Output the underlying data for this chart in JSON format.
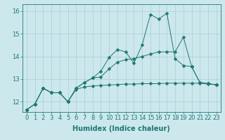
{
  "xlabel": "Humidex (Indice chaleur)",
  "bg_color": "#cce8ed",
  "grid_color": "#aacdd4",
  "line_color": "#1e7872",
  "x": [
    0,
    1,
    2,
    3,
    4,
    5,
    6,
    7,
    8,
    9,
    10,
    11,
    12,
    13,
    14,
    15,
    16,
    17,
    18,
    19,
    20,
    21,
    22,
    23
  ],
  "line1": [
    11.65,
    11.9,
    12.6,
    12.4,
    12.4,
    12.0,
    12.6,
    12.85,
    13.05,
    13.35,
    13.95,
    14.3,
    14.2,
    13.7,
    14.5,
    15.85,
    15.65,
    15.9,
    13.9,
    13.6,
    13.55,
    12.85,
    12.8,
    12.75
  ],
  "line2": [
    11.65,
    11.9,
    12.6,
    12.4,
    12.4,
    12.0,
    12.6,
    12.85,
    13.05,
    13.1,
    13.45,
    13.75,
    13.85,
    13.9,
    14.0,
    14.1,
    14.2,
    14.2,
    14.2,
    14.85,
    13.55,
    12.85,
    12.8,
    12.75
  ],
  "line3": [
    11.65,
    11.9,
    12.6,
    12.4,
    12.4,
    12.0,
    12.55,
    12.65,
    12.7,
    12.72,
    12.74,
    12.76,
    12.78,
    12.78,
    12.8,
    12.8,
    12.8,
    12.82,
    12.82,
    12.82,
    12.82,
    12.82,
    12.78,
    12.75
  ],
  "ylim": [
    11.55,
    16.3
  ],
  "yticks": [
    12,
    13,
    14,
    15,
    16
  ],
  "xticks": [
    0,
    1,
    2,
    3,
    4,
    5,
    6,
    7,
    8,
    9,
    10,
    11,
    12,
    13,
    14,
    15,
    16,
    17,
    18,
    19,
    20,
    21,
    22,
    23
  ],
  "tick_fontsize": 6,
  "xlabel_fontsize": 7,
  "markersize": 2.5
}
